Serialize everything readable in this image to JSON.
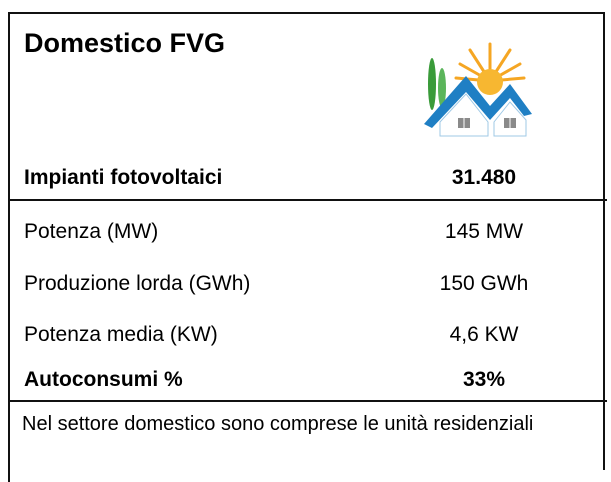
{
  "title": "Domestico FVG",
  "table": {
    "header": [
      "Impianti fotovoltaici",
      "31.480"
    ],
    "rows": [
      [
        "Potenza (MW)",
        "145 MW"
      ],
      [
        "Produzione lorda (GWh)",
        "150 GWh"
      ],
      [
        "Potenza media (KW)",
        "4,6 KW"
      ],
      [
        "Autoconsumi %",
        "33%"
      ]
    ]
  },
  "note": "Nel settore domestico sono comprese le unità residenziali"
}
